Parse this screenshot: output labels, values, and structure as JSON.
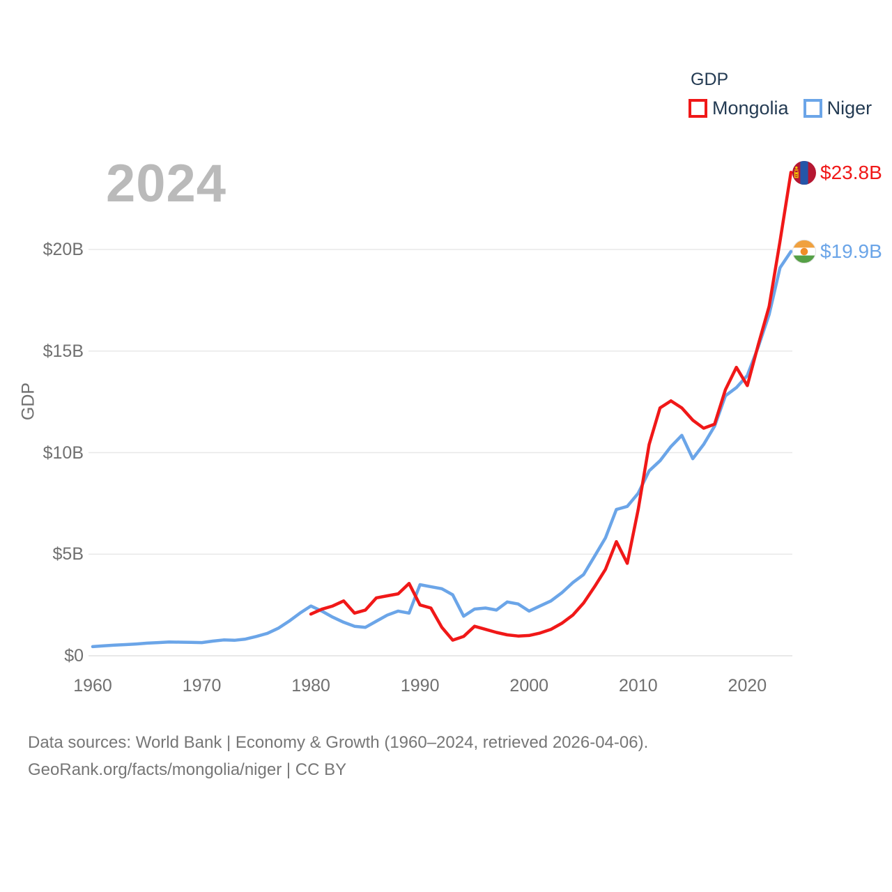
{
  "watermark_year": "2024",
  "legend": {
    "title": "GDP",
    "items": [
      {
        "label": "Mongolia",
        "color": "#f01818"
      },
      {
        "label": "Niger",
        "color": "#6ba5e8"
      }
    ]
  },
  "y_axis_title": "GDP",
  "footer": {
    "line1": "Data sources: World Bank | Economy & Growth (1960–2024, retrieved 2026-04-06).",
    "line2": "GeoRank.org/facts/mongolia/niger | CC BY"
  },
  "chart_data": {
    "type": "line",
    "title": "GDP",
    "xlabel": "",
    "ylabel": "GDP",
    "xlim": [
      1960,
      2024
    ],
    "ylim": [
      0,
      25
    ],
    "grid": "horizontal",
    "legend_position": "top-right",
    "x_ticks": [
      1960,
      1970,
      1980,
      1990,
      2000,
      2010,
      2020
    ],
    "y_ticks": [
      {
        "label": "$0",
        "value": 0
      },
      {
        "label": "$5B",
        "value": 5
      },
      {
        "label": "$10B",
        "value": 10
      },
      {
        "label": "$15B",
        "value": 15
      },
      {
        "label": "$20B",
        "value": 20
      }
    ],
    "units": "billions of USD",
    "series": [
      {
        "name": "Mongolia",
        "color": "#f01818",
        "flag_icon": "mongolia-flag-icon",
        "start_year": 1980,
        "values": [
          2.05,
          2.29,
          2.45,
          2.7,
          2.1,
          2.25,
          2.85,
          2.95,
          3.05,
          3.56,
          2.5,
          2.35,
          1.4,
          0.77,
          0.95,
          1.45,
          1.3,
          1.15,
          1.03,
          0.97,
          1.0,
          1.12,
          1.3,
          1.6,
          2.0,
          2.6,
          3.4,
          4.25,
          5.62,
          4.55,
          7.2,
          10.4,
          12.2,
          12.55,
          12.2,
          11.6,
          11.2,
          11.4,
          13.1,
          14.2,
          13.3,
          15.3,
          17.2,
          20.4,
          23.8
        ]
      },
      {
        "name": "Niger",
        "color": "#6ba5e8",
        "flag_icon": "niger-flag-icon",
        "start_year": 1960,
        "values": [
          0.45,
          0.49,
          0.52,
          0.55,
          0.58,
          0.62,
          0.65,
          0.68,
          0.67,
          0.66,
          0.65,
          0.72,
          0.78,
          0.76,
          0.82,
          0.95,
          1.1,
          1.35,
          1.7,
          2.1,
          2.45,
          2.2,
          1.9,
          1.65,
          1.45,
          1.4,
          1.7,
          2.0,
          2.2,
          2.1,
          3.5,
          3.4,
          3.3,
          3.0,
          1.95,
          2.3,
          2.35,
          2.25,
          2.65,
          2.55,
          2.2,
          2.45,
          2.7,
          3.1,
          3.6,
          4.0,
          4.9,
          5.8,
          7.2,
          7.35,
          8.0,
          9.1,
          9.6,
          10.3,
          10.85,
          9.7,
          10.4,
          11.3,
          12.8,
          13.2,
          13.8,
          15.2,
          16.8,
          19.1,
          19.9
        ]
      }
    ],
    "end_labels": [
      {
        "series": "Mongolia",
        "text": "$23.8B",
        "color": "#f01818"
      },
      {
        "series": "Niger",
        "text": "$19.9B",
        "color": "#6ba5e8"
      }
    ]
  }
}
